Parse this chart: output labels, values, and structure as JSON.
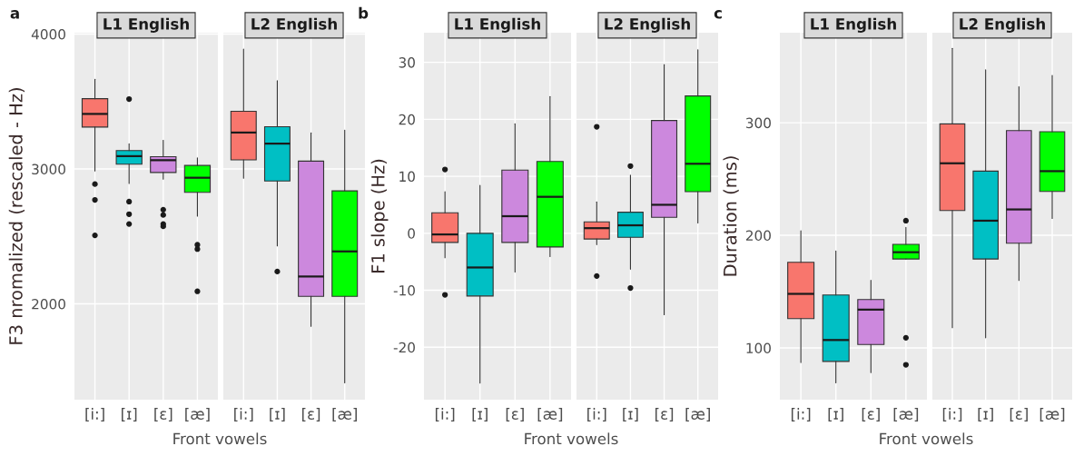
{
  "chart_data": [
    {
      "type": "box",
      "title": "L1 English",
      "annotations": [
        "a"
      ],
      "ylabel": "F3 nromalized (rescaled - Hz)",
      "xlabel": "Front vowels",
      "categories": [
        "[i:]",
        "[ɪ]",
        "[ɛ]",
        "[æ]"
      ],
      "colors": [
        "#f8766d",
        "#00bfc4",
        "#cc88dd",
        "#00ff00"
      ],
      "ylim": [
        1290,
        4010
      ],
      "yticks": [
        2000,
        3000,
        4000
      ],
      "grid": true,
      "boxes": [
        {
          "low": 2985,
          "q1": 3311,
          "median": 3408,
          "q3": 3521,
          "high": 3665,
          "outliers": [
            2888,
            2771,
            2508
          ]
        },
        {
          "low": 2892,
          "q1": 3035,
          "median": 3095,
          "q3": 3136,
          "high": 3186,
          "outliers": [
            3518,
            2758,
            2665,
            2592
          ]
        },
        {
          "low": 2924,
          "q1": 2974,
          "median": 3065,
          "q3": 3091,
          "high": 3212,
          "outliers": [
            2698,
            2659,
            2592,
            2575
          ]
        },
        {
          "low": 2650,
          "q1": 2827,
          "median": 2935,
          "q3": 3026,
          "high": 3082,
          "outliers": [
            2438,
            2406,
            2093
          ]
        }
      ]
    },
    {
      "type": "box",
      "title": "L2 English",
      "categories": [
        "[i:]",
        "[ɪ]",
        "[ɛ]",
        "[æ]"
      ],
      "colors": [
        "#f8766d",
        "#00bfc4",
        "#cc88dd",
        "#00ff00"
      ],
      "ylim": [
        1290,
        4010
      ],
      "yticks": [
        2000,
        3000,
        4000
      ],
      "grid": true,
      "tick_labels": "x",
      "boxes": [
        {
          "low": 2931,
          "q1": 3067,
          "median": 3270,
          "q3": 3428,
          "high": 3888
        },
        {
          "low": 2430,
          "q1": 2911,
          "median": 3188,
          "q3": 3313,
          "high": 3654,
          "outliers": [
            2240
          ]
        },
        {
          "low": 1834,
          "q1": 2056,
          "median": 2203,
          "q3": 3058,
          "high": 3268
        },
        {
          "low": 1415,
          "q1": 2056,
          "median": 2389,
          "q3": 2838,
          "high": 3287
        }
      ]
    },
    {
      "type": "box",
      "title": "L1 English",
      "annotations": [
        "b"
      ],
      "ylabel": "F1 slope (Hz)",
      "xlabel": "Front vowels",
      "categories": [
        "[i:]",
        "[ɪ]",
        "[ɛ]",
        "[æ]"
      ],
      "colors": [
        "#f8766d",
        "#00bfc4",
        "#cc88dd",
        "#00ff00"
      ],
      "ylim": [
        -29.2,
        35.2
      ],
      "yticks": [
        -20,
        -10,
        0,
        10,
        20,
        30
      ],
      "grid": true,
      "boxes": [
        {
          "low": -4.3,
          "q1": -1.6,
          "median": -0.2,
          "q3": 3.6,
          "high": 7.3,
          "outliers": [
            11.2,
            -10.8
          ]
        },
        {
          "low": -26.3,
          "q1": -11.0,
          "median": -6.0,
          "q3": 0,
          "high": 8.4
        },
        {
          "low": -6.8,
          "q1": -1.6,
          "median": 3.0,
          "q3": 11.1,
          "high": 19.2
        },
        {
          "low": -4.1,
          "q1": -2.4,
          "median": 6.4,
          "q3": 12.6,
          "high": 24.0
        }
      ]
    },
    {
      "type": "box",
      "title": "L2 English",
      "categories": [
        "[i:]",
        "[ɪ]",
        "[ɛ]",
        "[æ]"
      ],
      "colors": [
        "#f8766d",
        "#00bfc4",
        "#cc88dd",
        "#00ff00"
      ],
      "ylim": [
        -29.2,
        35.2
      ],
      "yticks": [
        -20,
        -10,
        0,
        10,
        20,
        30
      ],
      "grid": true,
      "tick_labels": "x",
      "boxes": [
        {
          "low": -2.0,
          "q1": -1.0,
          "median": 0.9,
          "q3": 2.0,
          "high": 5.5,
          "outliers": [
            18.7,
            -7.5
          ]
        },
        {
          "low": -6.3,
          "q1": -0.7,
          "median": 1.4,
          "q3": 3.7,
          "high": 10.2,
          "outliers": [
            11.8,
            -9.6
          ]
        },
        {
          "low": -14.3,
          "q1": 2.8,
          "median": 5.0,
          "q3": 19.8,
          "high": 29.6
        },
        {
          "low": 1.8,
          "q1": 7.3,
          "median": 12.2,
          "q3": 24.1,
          "high": 32.2
        }
      ]
    },
    {
      "type": "box",
      "title": "L1 English",
      "annotations": [
        "c"
      ],
      "ylabel": "Duration (ms)",
      "xlabel": "Front vowels",
      "categories": [
        "[i:]",
        "[ɪ]",
        "[ɛ]",
        "[æ]"
      ],
      "colors": [
        "#f8766d",
        "#00bfc4",
        "#cc88dd",
        "#00ff00"
      ],
      "ylim": [
        54,
        380
      ],
      "yticks": [
        100,
        200,
        300
      ],
      "grid": true,
      "boxes": [
        {
          "low": 87,
          "q1": 126,
          "median": 148,
          "q3": 176,
          "high": 204
        },
        {
          "low": 69,
          "q1": 88,
          "median": 107,
          "q3": 147,
          "high": 186
        },
        {
          "low": 78,
          "q1": 103,
          "median": 134,
          "q3": 143,
          "high": 160
        },
        {
          "low": 179,
          "q1": 179,
          "median": 185,
          "q3": 192,
          "high": 207,
          "outliers": [
            213,
            109,
            85
          ]
        }
      ]
    },
    {
      "type": "box",
      "title": "L2 English",
      "categories": [
        "[i:]",
        "[ɪ]",
        "[ɛ]",
        "[æ]"
      ],
      "colors": [
        "#f8766d",
        "#00bfc4",
        "#cc88dd",
        "#00ff00"
      ],
      "ylim": [
        54,
        380
      ],
      "yticks": [
        100,
        200,
        300
      ],
      "grid": true,
      "tick_labels": "x",
      "boxes": [
        {
          "low": 118,
          "q1": 222,
          "median": 264,
          "q3": 299,
          "high": 366
        },
        {
          "low": 109,
          "q1": 179,
          "median": 213,
          "q3": 257,
          "high": 347
        },
        {
          "low": 160,
          "q1": 193,
          "median": 223,
          "q3": 293,
          "high": 332
        },
        {
          "low": 215,
          "q1": 239,
          "median": 257,
          "q3": 292,
          "high": 342
        }
      ]
    }
  ]
}
